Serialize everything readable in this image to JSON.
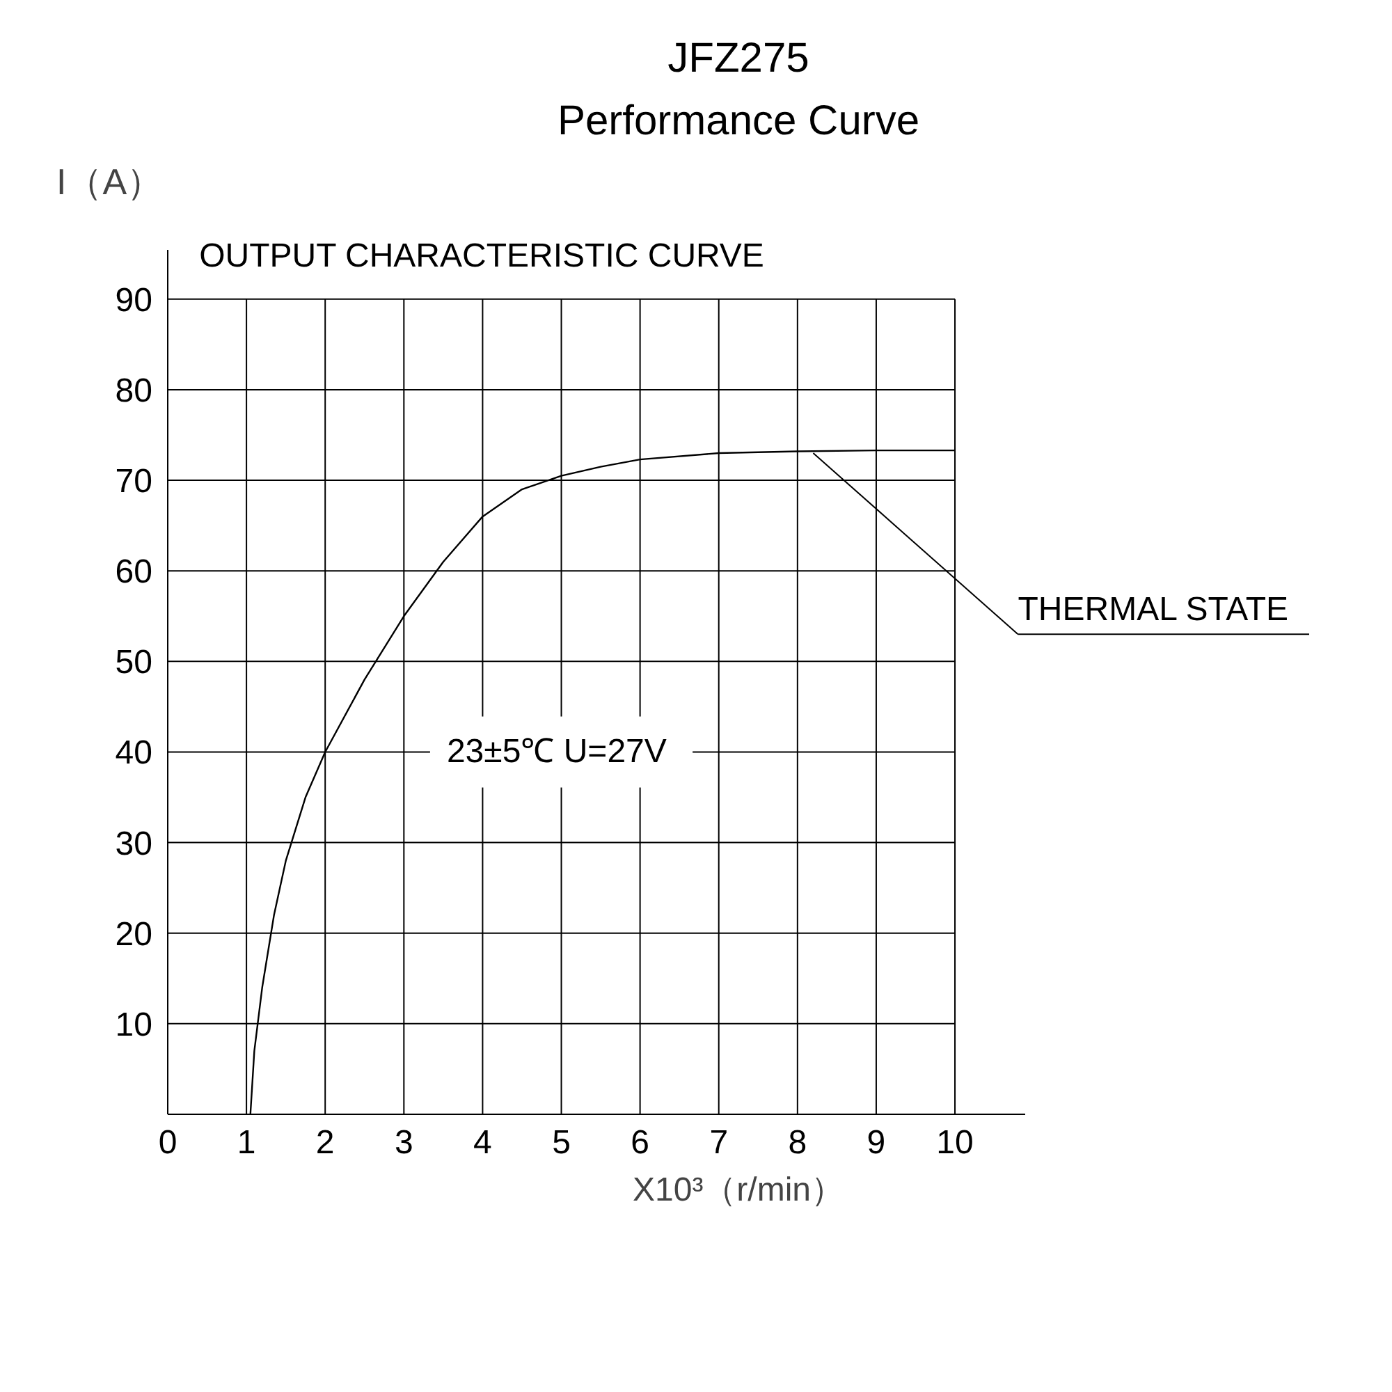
{
  "chart_data": {
    "type": "line",
    "title": "JFZ275",
    "subtitle": "Performance Curve",
    "xlabel": "X10³（r/min）",
    "ylabel": "I（A）",
    "x": [
      1.05,
      1.1,
      1.2,
      1.35,
      1.5,
      1.75,
      2,
      2.5,
      3,
      3.5,
      4,
      4.5,
      5,
      5.5,
      6,
      7,
      8,
      9,
      10
    ],
    "series": [
      {
        "color": "#000000",
        "values": [
          0,
          7,
          14,
          22,
          28,
          35,
          40,
          48,
          55,
          61,
          66,
          69,
          70.5,
          71.5,
          72.3,
          73,
          73.2,
          73.3,
          73.3
        ]
      }
    ],
    "annotations": [
      "OUTPUT  CHARACTERISTIC  CURVE",
      "23±5℃  U=27V",
      {
        "text": "THERMAL  STATE",
        "x": 8.2,
        "y": 73
      }
    ],
    "xlim": [
      0,
      10
    ],
    "ylim": [
      0,
      90
    ],
    "xticks": [
      0,
      1,
      2,
      3,
      4,
      5,
      6,
      7,
      8,
      9,
      10
    ],
    "yticks": [
      10,
      20,
      30,
      40,
      50,
      60,
      70,
      80,
      90
    ],
    "grid": true,
    "marker": "none",
    "line_style": "solid"
  }
}
